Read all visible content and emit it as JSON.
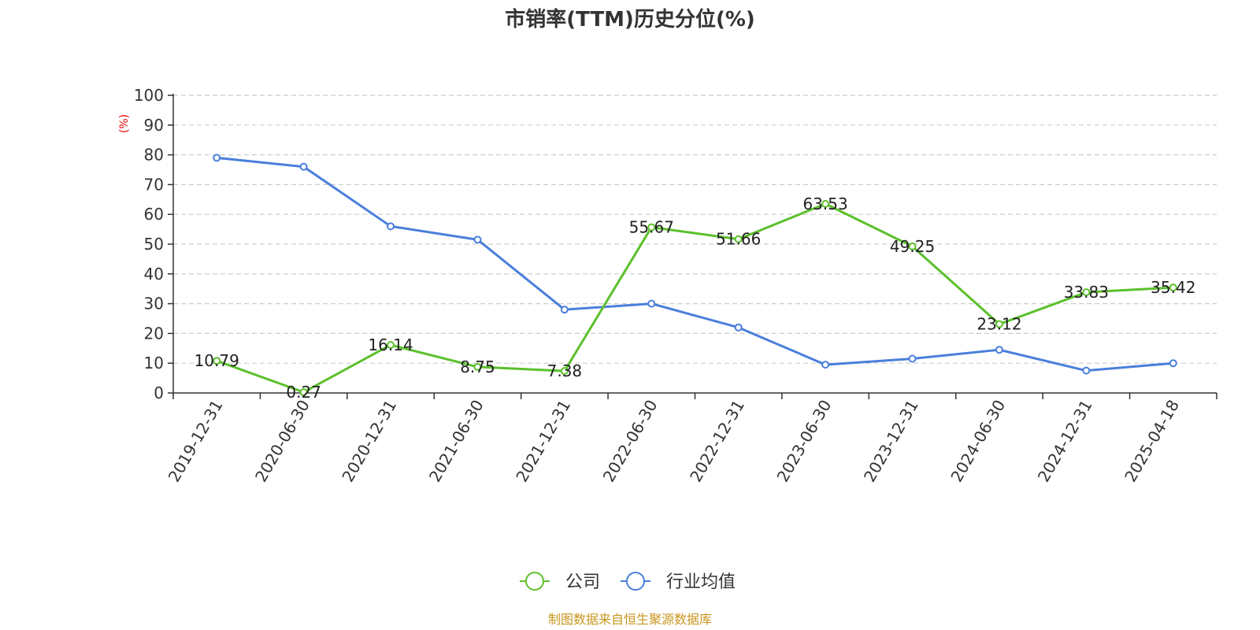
{
  "chart_data": {
    "type": "line",
    "title": "市销率(TTM)历史分位(%)",
    "ylabel": "(%)",
    "ylim": [
      0,
      100
    ],
    "yticks": [
      0,
      10,
      20,
      30,
      40,
      50,
      60,
      70,
      80,
      90,
      100
    ],
    "yticklabels": [
      "0",
      "10",
      "20",
      "30",
      "40",
      "50",
      "60",
      "70",
      "80",
      "90",
      "100"
    ],
    "grid": true,
    "legend_position": "bottom",
    "categories": [
      "2019-12-31",
      "2020-06-30",
      "2020-12-31",
      "2021-06-30",
      "2021-12-31",
      "2022-06-30",
      "2022-12-31",
      "2023-06-30",
      "2023-12-31",
      "2024-06-30",
      "2024-12-31",
      "2025-04-18"
    ],
    "series": [
      {
        "name": "公司",
        "color": "#5cc02c",
        "values": [
          10.79,
          0.27,
          16.14,
          8.75,
          7.38,
          55.67,
          51.66,
          63.53,
          49.25,
          23.12,
          33.83,
          35.42
        ],
        "labels": [
          "10.79",
          "0.27",
          "16.14",
          "8.75",
          "7.38",
          "55.67",
          "51.66",
          "63.53",
          "49.25",
          "23.12",
          "33.83",
          "35.42"
        ]
      },
      {
        "name": "行业均值",
        "color": "#4a7fdc",
        "values": [
          79,
          76,
          56,
          51.5,
          28,
          30,
          22,
          9.5,
          11.5,
          14.5,
          7.5,
          10
        ]
      }
    ],
    "source": "制图数据来自恒生聚源数据库",
    "source_color": "#c8961e",
    "ylabel_color": "#e60000"
  }
}
